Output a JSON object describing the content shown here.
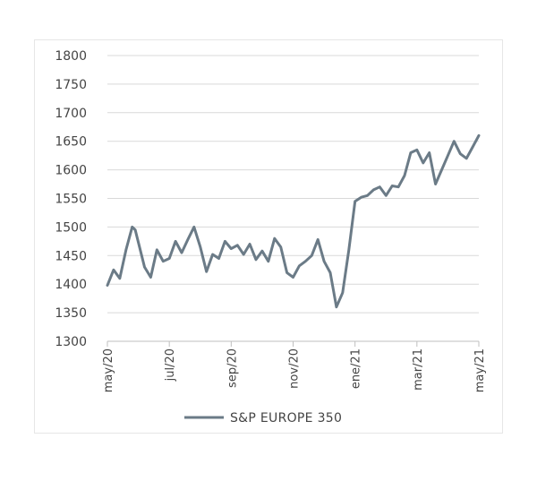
{
  "chart_data": {
    "type": "line",
    "title": "",
    "xlabel": "",
    "ylabel": "",
    "ylim": [
      1300,
      1800
    ],
    "yticks": [
      1300,
      1350,
      1400,
      1450,
      1500,
      1550,
      1600,
      1650,
      1700,
      1750,
      1800
    ],
    "xticks": [
      "may/20",
      "jul/20",
      "sep/20",
      "nov/20",
      "ene/21",
      "mar/21",
      "may/21"
    ],
    "grid": "horizontal",
    "legend": "bottom",
    "series": [
      {
        "name": "S&P EUROPE 350",
        "color": "#6b7b87",
        "x": [
          0,
          0.1,
          0.2,
          0.3,
          0.4,
          0.45,
          0.6,
          0.7,
          0.8,
          0.9,
          1.0,
          1.1,
          1.2,
          1.3,
          1.4,
          1.5,
          1.6,
          1.7,
          1.8,
          1.9,
          2.0,
          2.1,
          2.2,
          2.3,
          2.4,
          2.5,
          2.6,
          2.7,
          2.8,
          2.9,
          3.0,
          3.1,
          3.2,
          3.3,
          3.4,
          3.5,
          3.6,
          3.7,
          3.8,
          3.9,
          4.0,
          4.1,
          4.2,
          4.3,
          4.4,
          4.5,
          4.6,
          4.7,
          4.8,
          4.9,
          5.0,
          5.1,
          5.2,
          5.3,
          5.4,
          5.5,
          5.6,
          5.7,
          5.8,
          5.9,
          6.0
        ],
        "values": [
          1398,
          1425,
          1410,
          1460,
          1500,
          1495,
          1430,
          1412,
          1460,
          1440,
          1445,
          1475,
          1455,
          1478,
          1500,
          1465,
          1422,
          1452,
          1445,
          1475,
          1462,
          1468,
          1452,
          1470,
          1443,
          1458,
          1440,
          1480,
          1465,
          1420,
          1412,
          1432,
          1440,
          1450,
          1478,
          1440,
          1420,
          1360,
          1385,
          1460,
          1545,
          1552,
          1555,
          1565,
          1570,
          1555,
          1572,
          1570,
          1590,
          1630,
          1635,
          1612,
          1630,
          1575,
          1600,
          1625,
          1650,
          1628,
          1620,
          1640,
          1660
        ]
      }
    ]
  },
  "legend": {
    "label": "S&P EUROPE 350"
  }
}
